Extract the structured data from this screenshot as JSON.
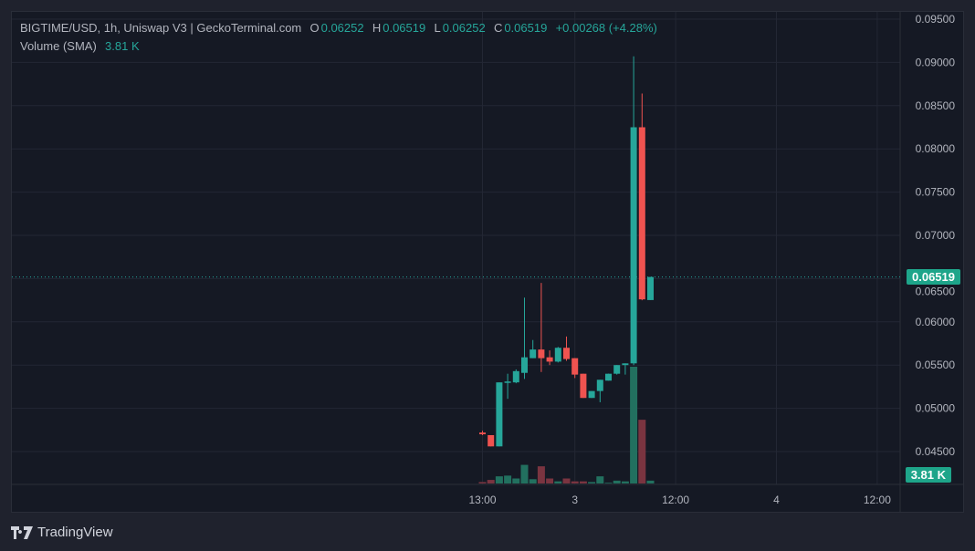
{
  "header": {
    "symbol": "BIGTIME/USD, 1h, Uniswap V3 | GeckoTerminal.com",
    "o_label": "O",
    "o": "0.06252",
    "h_label": "H",
    "h": "0.06519",
    "l_label": "L",
    "l": "0.06252",
    "c_label": "C",
    "c": "0.06519",
    "change": "+0.00268 (+4.28%)",
    "volume_label": "Volume (SMA)",
    "volume_value": "3.81 K"
  },
  "badges": {
    "price": "0.06519",
    "volume": "3.81 K"
  },
  "brand": {
    "name": "TradingView"
  },
  "colors": {
    "up": "#26a69a",
    "down": "#ef5350",
    "up_volume": "#22705f",
    "down_volume": "#7a3440",
    "background": "#151924"
  },
  "chart_data": {
    "type": "candlestick",
    "title": "BIGTIME/USD, 1h, Uniswap V3 | GeckoTerminal.com",
    "y_ticks": [
      "0.09500",
      "0.09000",
      "0.08500",
      "0.08000",
      "0.07500",
      "0.07000",
      "0.06500",
      "0.06000",
      "0.05500",
      "0.05000",
      "0.04500"
    ],
    "ylim": [
      0.0435,
      0.0955
    ],
    "x_ticks": [
      {
        "label": "13:00",
        "hour": 0
      },
      {
        "label": "3",
        "hour": 11
      },
      {
        "label": "12:00",
        "hour": 23
      },
      {
        "label": "4",
        "hour": 35
      },
      {
        "label": "12:00",
        "hour": 47
      }
    ],
    "grid": true,
    "last_price": 0.06519,
    "candles": [
      {
        "t": "13:00",
        "o": 0.0472,
        "h": 0.0474,
        "l": 0.0469,
        "c": 0.047,
        "v": 2
      },
      {
        "t": "14:00",
        "o": 0.0469,
        "h": 0.0469,
        "l": 0.0456,
        "c": 0.0456,
        "v": 5
      },
      {
        "t": "15:00",
        "o": 0.0456,
        "h": 0.053,
        "l": 0.0456,
        "c": 0.053,
        "v": 10
      },
      {
        "t": "16:00",
        "o": 0.053,
        "h": 0.054,
        "l": 0.0511,
        "c": 0.0531,
        "v": 11
      },
      {
        "t": "17:00",
        "o": 0.053,
        "h": 0.0545,
        "l": 0.0529,
        "c": 0.0543,
        "v": 7
      },
      {
        "t": "18:00",
        "o": 0.0541,
        "h": 0.0628,
        "l": 0.0534,
        "c": 0.0559,
        "v": 26
      },
      {
        "t": "19:00",
        "o": 0.0558,
        "h": 0.0579,
        "l": 0.0558,
        "c": 0.0568,
        "v": 6
      },
      {
        "t": "20:00",
        "o": 0.0568,
        "h": 0.0645,
        "l": 0.0542,
        "c": 0.0558,
        "v": 24
      },
      {
        "t": "21:00",
        "o": 0.0559,
        "h": 0.0567,
        "l": 0.055,
        "c": 0.0554,
        "v": 7
      },
      {
        "t": "22:00",
        "o": 0.0554,
        "h": 0.0571,
        "l": 0.0553,
        "c": 0.057,
        "v": 3
      },
      {
        "t": "23:00",
        "o": 0.057,
        "h": 0.0583,
        "l": 0.0555,
        "c": 0.0557,
        "v": 7
      },
      {
        "t": "00:00",
        "o": 0.0558,
        "h": 0.0558,
        "l": 0.0535,
        "c": 0.0539,
        "v": 3
      },
      {
        "t": "01:00",
        "o": 0.054,
        "h": 0.054,
        "l": 0.0512,
        "c": 0.0512,
        "v": 3
      },
      {
        "t": "02:00",
        "o": 0.0512,
        "h": 0.052,
        "l": 0.0512,
        "c": 0.052,
        "v": 2
      },
      {
        "t": "03:00",
        "o": 0.052,
        "h": 0.0533,
        "l": 0.0507,
        "c": 0.0533,
        "v": 10
      },
      {
        "t": "04:00",
        "o": 0.0532,
        "h": 0.054,
        "l": 0.0532,
        "c": 0.054,
        "v": 1
      },
      {
        "t": "05:00",
        "o": 0.054,
        "h": 0.055,
        "l": 0.0539,
        "c": 0.055,
        "v": 4
      },
      {
        "t": "06:00",
        "o": 0.055,
        "h": 0.0552,
        "l": 0.0539,
        "c": 0.0552,
        "v": 3
      },
      {
        "t": "07:00",
        "o": 0.0552,
        "h": 0.0907,
        "l": 0.055,
        "c": 0.0825,
        "v": 163
      },
      {
        "t": "08:00",
        "o": 0.0825,
        "h": 0.0864,
        "l": 0.0625,
        "c": 0.0626,
        "v": 89
      },
      {
        "t": "09:00",
        "o": 0.06252,
        "h": 0.06519,
        "l": 0.06252,
        "c": 0.06519,
        "v": 4
      }
    ],
    "volume_unit": "K"
  }
}
